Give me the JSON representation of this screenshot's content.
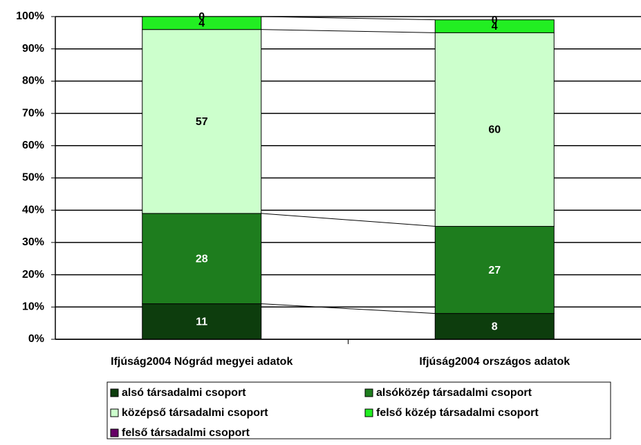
{
  "chart_data": {
    "type": "bar",
    "stacked": true,
    "categories": [
      "Ifjúság2004 Nógrád megyei adatok",
      "Ifjúság2004 országos adatok"
    ],
    "series": [
      {
        "name": "alsó társadalmi csoport",
        "color": "#0d3d0d",
        "values": [
          11,
          8
        ]
      },
      {
        "name": "alsóközép társadalmi csoport",
        "color": "#1e7d1e",
        "values": [
          28,
          27
        ]
      },
      {
        "name": "középső társadalmi csoport",
        "color": "#ccffcc",
        "values": [
          57,
          60
        ]
      },
      {
        "name": "felső közép társadalmi csoport",
        "color": "#22ee22",
        "values": [
          4,
          4
        ]
      },
      {
        "name": "felső társadalmi csoport",
        "color": "#660066",
        "values": [
          0,
          0
        ]
      }
    ],
    "ylim": [
      0,
      100
    ],
    "yticks": [
      {
        "value": 0,
        "label": "0%"
      },
      {
        "value": 10,
        "label": "10%"
      },
      {
        "value": 20,
        "label": "20%"
      },
      {
        "value": 30,
        "label": "30%"
      },
      {
        "value": 40,
        "label": "40%"
      },
      {
        "value": 50,
        "label": "50%"
      },
      {
        "value": 60,
        "label": "60%"
      },
      {
        "value": 70,
        "label": "70%"
      },
      {
        "value": 80,
        "label": "80%"
      },
      {
        "value": 90,
        "label": "90%"
      },
      {
        "value": 100,
        "label": "100%"
      }
    ],
    "grid": true,
    "legend": "bottom"
  }
}
